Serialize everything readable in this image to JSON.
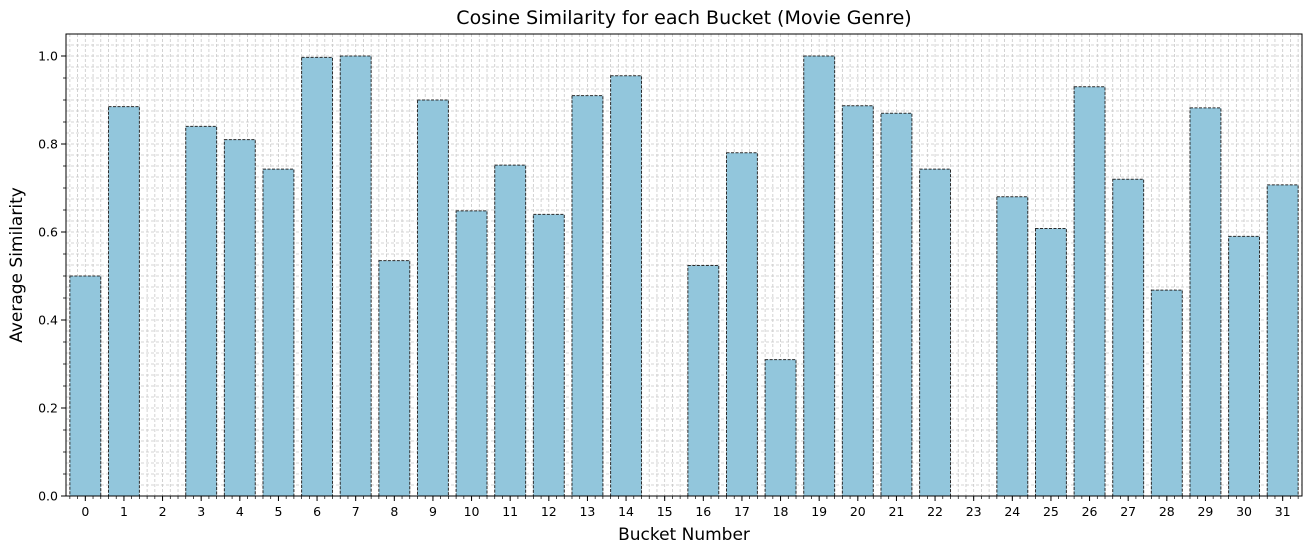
{
  "chart_data": {
    "type": "bar",
    "title": "Cosine Similarity for each Bucket (Movie Genre)",
    "xlabel": "Bucket Number",
    "ylabel": "Average Similarity",
    "categories": [
      "0",
      "1",
      "2",
      "3",
      "4",
      "5",
      "6",
      "7",
      "8",
      "9",
      "10",
      "11",
      "12",
      "13",
      "14",
      "15",
      "16",
      "17",
      "18",
      "19",
      "20",
      "21",
      "22",
      "23",
      "24",
      "25",
      "26",
      "27",
      "28",
      "29",
      "30",
      "31"
    ],
    "values": [
      0.5,
      0.885,
      0.0,
      0.84,
      0.81,
      0.743,
      0.997,
      1.0,
      0.535,
      0.9,
      0.648,
      0.752,
      0.64,
      0.91,
      0.955,
      0.0,
      0.524,
      0.78,
      0.31,
      1.0,
      0.887,
      0.87,
      0.743,
      0.0,
      0.68,
      0.608,
      0.93,
      0.72,
      0.468,
      0.882,
      0.59,
      0.707
    ],
    "ylim": [
      0,
      1.05
    ],
    "yticks": [
      "0.0",
      "0.2",
      "0.4",
      "0.6",
      "0.8",
      "1.0"
    ],
    "grid": true,
    "bar_color": "#92c6dc",
    "edge_color": "#2b2b2b",
    "grid_color": "#c8c8c8"
  }
}
